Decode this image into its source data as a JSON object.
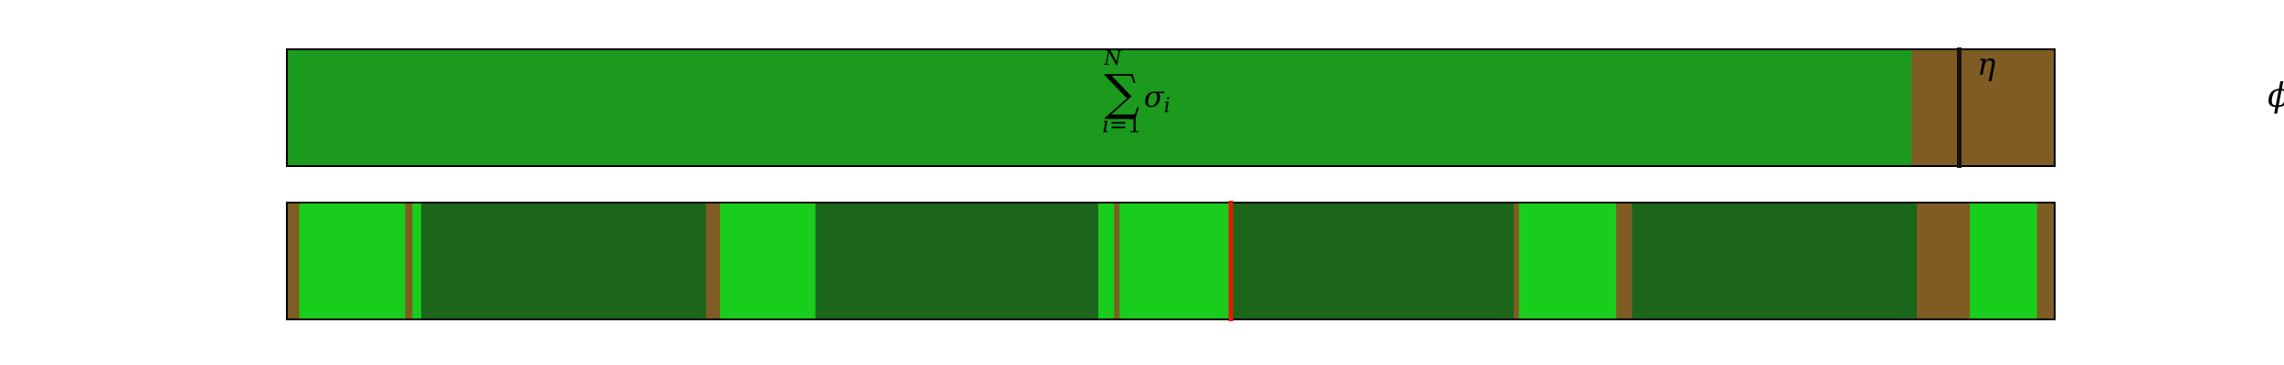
{
  "colors": {
    "green": "#1b9a1e",
    "brown": "#7f5c23",
    "light_green": "#18cd1c",
    "dark_green": "#1b661b",
    "marker_black": "#111111",
    "marker_red": "#e21a00",
    "border": "#000000"
  },
  "labels": {
    "sum_symbol": "∑",
    "sum_upper": "N",
    "sum_lower_var": "i",
    "sum_lower_eq": "=",
    "sum_lower_val": "1",
    "sum_term_base": "σ",
    "sum_term_sub": "i",
    "eta": "η",
    "phi": "ϕ"
  },
  "bars": {
    "top": {
      "segments": [
        {
          "start": 0.0,
          "end": 0.919,
          "color": "green"
        },
        {
          "start": 0.919,
          "end": 1.0,
          "color": "brown"
        }
      ],
      "marker": {
        "position": 0.946,
        "color": "marker_black"
      }
    },
    "bottom": {
      "segments": [
        {
          "start": 0.0,
          "end": 0.007,
          "color": "brown"
        },
        {
          "start": 0.007,
          "end": 0.067,
          "color": "light_green"
        },
        {
          "start": 0.067,
          "end": 0.071,
          "color": "brown"
        },
        {
          "start": 0.071,
          "end": 0.076,
          "color": "light_green"
        },
        {
          "start": 0.076,
          "end": 0.237,
          "color": "dark_green"
        },
        {
          "start": 0.237,
          "end": 0.245,
          "color": "brown"
        },
        {
          "start": 0.245,
          "end": 0.299,
          "color": "light_green"
        },
        {
          "start": 0.299,
          "end": 0.459,
          "color": "dark_green"
        },
        {
          "start": 0.459,
          "end": 0.468,
          "color": "light_green"
        },
        {
          "start": 0.468,
          "end": 0.471,
          "color": "brown"
        },
        {
          "start": 0.471,
          "end": 0.534,
          "color": "light_green"
        },
        {
          "start": 0.534,
          "end": 0.694,
          "color": "dark_green"
        },
        {
          "start": 0.694,
          "end": 0.697,
          "color": "brown"
        },
        {
          "start": 0.697,
          "end": 0.752,
          "color": "light_green"
        },
        {
          "start": 0.752,
          "end": 0.761,
          "color": "brown"
        },
        {
          "start": 0.761,
          "end": 0.922,
          "color": "dark_green"
        },
        {
          "start": 0.922,
          "end": 0.952,
          "color": "brown"
        },
        {
          "start": 0.952,
          "end": 0.99,
          "color": "light_green"
        },
        {
          "start": 0.99,
          "end": 1.0,
          "color": "brown"
        }
      ],
      "marker": {
        "position": 0.534,
        "color": "marker_red"
      }
    }
  }
}
